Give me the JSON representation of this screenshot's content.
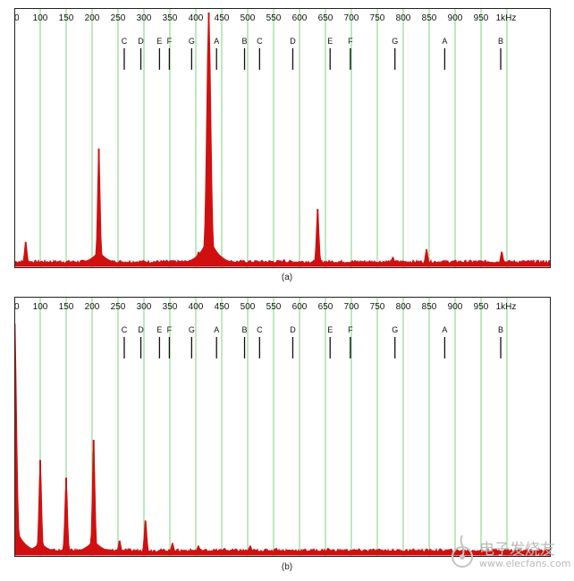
{
  "chart_data": [
    {
      "type": "line",
      "panel_label": "(a)",
      "x_unit": "1kHz",
      "xlim": [
        0,
        1000
      ],
      "ylim": [
        0,
        100
      ],
      "grid": true,
      "x_ticks": [
        "50",
        "100",
        "150",
        "200",
        "250",
        "300",
        "350",
        "400",
        "450",
        "500",
        "550",
        "600",
        "650",
        "700",
        "750",
        "800",
        "850",
        "900",
        "950"
      ],
      "notes": [
        {
          "name": "C",
          "freq": 262
        },
        {
          "name": "D",
          "freq": 294
        },
        {
          "name": "E",
          "freq": 330
        },
        {
          "name": "F",
          "freq": 349
        },
        {
          "name": "G",
          "freq": 392
        },
        {
          "name": "A",
          "freq": 440
        },
        {
          "name": "B",
          "freq": 494
        },
        {
          "name": "C",
          "freq": 523
        },
        {
          "name": "D",
          "freq": 587
        },
        {
          "name": "E",
          "freq": 659
        },
        {
          "name": "F",
          "freq": 698
        },
        {
          "name": "G",
          "freq": 784
        },
        {
          "name": "A",
          "freq": 880
        },
        {
          "name": "B",
          "freq": 988
        }
      ],
      "series": [
        {
          "color": "#d01010",
          "peaks": [
            {
              "x": 72,
              "y": 9
            },
            {
              "x": 213,
              "y": 46
            },
            {
              "x": 420,
              "y": 8
            },
            {
              "x": 425,
              "y": 100
            },
            {
              "x": 430,
              "y": 12
            },
            {
              "x": 405,
              "y": 5
            },
            {
              "x": 570,
              "y": 2
            },
            {
              "x": 635,
              "y": 22
            },
            {
              "x": 780,
              "y": 3
            },
            {
              "x": 845,
              "y": 6
            },
            {
              "x": 990,
              "y": 5
            }
          ]
        }
      ]
    },
    {
      "type": "line",
      "panel_label": "(b)",
      "x_unit": "1kHz",
      "xlim": [
        0,
        1000
      ],
      "ylim": [
        0,
        100
      ],
      "grid": true,
      "x_ticks": [
        "50",
        "100",
        "150",
        "200",
        "250",
        "300",
        "350",
        "400",
        "450",
        "500",
        "550",
        "600",
        "650",
        "700",
        "750",
        "800",
        "850",
        "900",
        "950"
      ],
      "notes": [
        {
          "name": "C",
          "freq": 262
        },
        {
          "name": "D",
          "freq": 294
        },
        {
          "name": "E",
          "freq": 330
        },
        {
          "name": "F",
          "freq": 349
        },
        {
          "name": "G",
          "freq": 392
        },
        {
          "name": "A",
          "freq": 440
        },
        {
          "name": "B",
          "freq": 494
        },
        {
          "name": "C",
          "freq": 523
        },
        {
          "name": "D",
          "freq": 587
        },
        {
          "name": "E",
          "freq": 659
        },
        {
          "name": "F",
          "freq": 698
        },
        {
          "name": "G",
          "freq": 784
        },
        {
          "name": "A",
          "freq": 880
        },
        {
          "name": "B",
          "freq": 988
        }
      ],
      "series": [
        {
          "color": "#d01010",
          "peaks": [
            {
              "x": 50,
              "y": 100
            },
            {
              "x": 100,
              "y": 37
            },
            {
              "x": 150,
              "y": 30
            },
            {
              "x": 203,
              "y": 45
            },
            {
              "x": 253,
              "y": 5
            },
            {
              "x": 303,
              "y": 13
            },
            {
              "x": 355,
              "y": 4
            },
            {
              "x": 405,
              "y": 3
            },
            {
              "x": 455,
              "y": 2
            },
            {
              "x": 505,
              "y": 3
            },
            {
              "x": 555,
              "y": 2
            },
            {
              "x": 655,
              "y": 2
            }
          ]
        }
      ]
    }
  ],
  "captions": {
    "a": "(a)",
    "b": "(b)"
  },
  "watermark": {
    "line1": "电子发烧友",
    "line2": "www.elecfans.com"
  }
}
